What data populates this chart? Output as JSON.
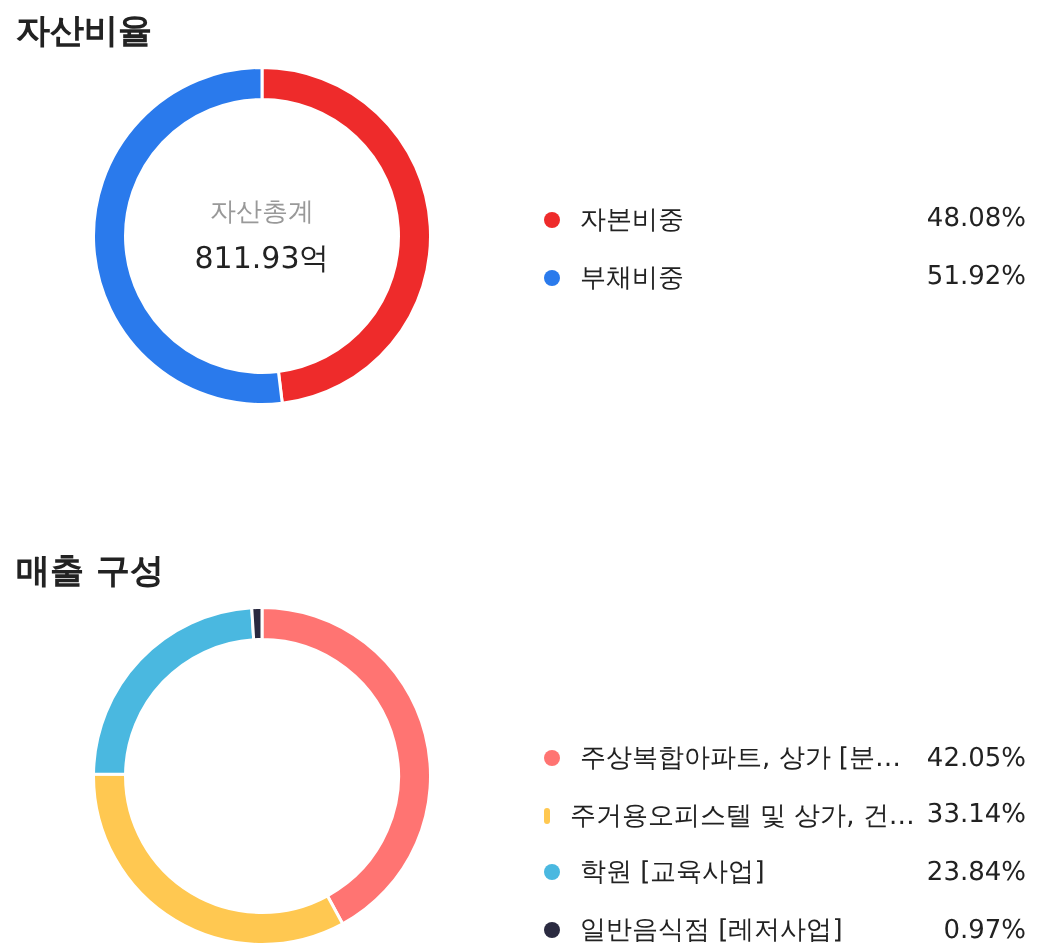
{
  "chart_data": [
    {
      "type": "donut",
      "title": "자산비율",
      "categories": [
        "자본비중",
        "부채비중"
      ],
      "values": [
        48.08,
        51.92
      ],
      "colors": [
        "#ee2b2b",
        "#2a7aec"
      ],
      "value_labels": [
        "48.08%",
        "51.92%"
      ],
      "legend": "right",
      "annotations": [
        "자산총계",
        "811.93억"
      ]
    },
    {
      "type": "donut",
      "title": "매출 구성",
      "categories": [
        "주상복합아파트, 상가 [분…",
        "주거용오피스텔 및 상가, 건…",
        "학원 [교육사업]",
        "일반음식점 [레저사업]"
      ],
      "values": [
        42.05,
        33.14,
        23.84,
        0.97
      ],
      "colors": [
        "#ff7472",
        "#ffc851",
        "#4ab8e0",
        "#2a2a40"
      ],
      "value_labels": [
        "42.05%",
        "33.14%",
        "23.84%",
        "0.97%"
      ],
      "legend": "right"
    }
  ]
}
